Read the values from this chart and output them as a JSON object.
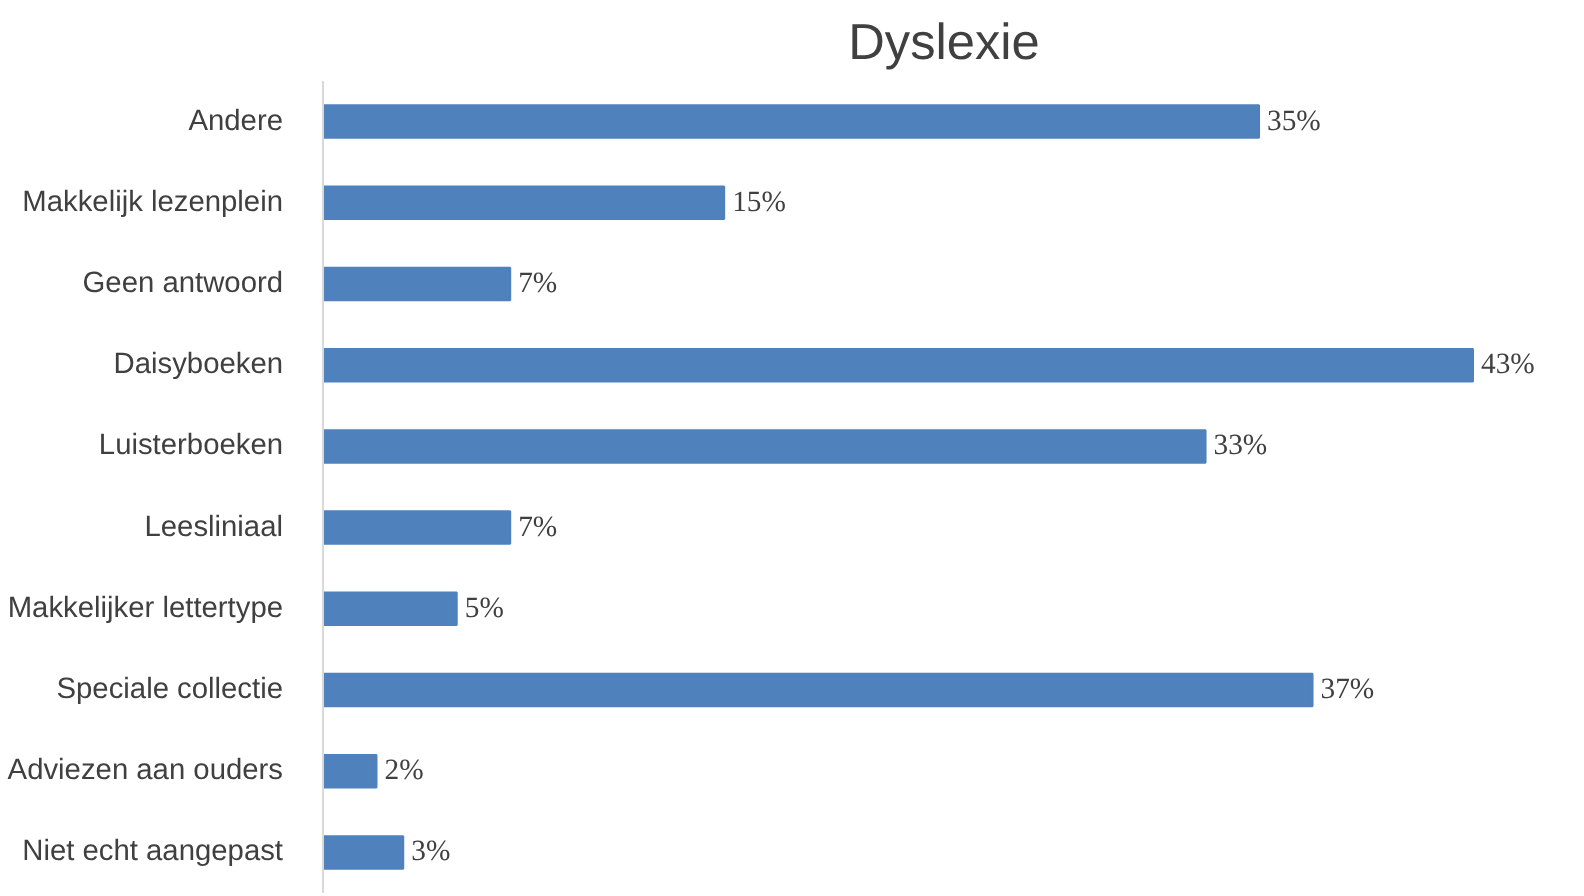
{
  "chart_data": {
    "type": "bar",
    "orientation": "horizontal",
    "title": "Dyslexie",
    "categories": [
      "Andere",
      "Makkelijk lezenplein",
      "Geen antwoord",
      "Daisyboeken",
      "Luisterboeken",
      "Leesliniaal",
      "Makkelijker lettertype",
      "Speciale collectie",
      "Adviezen aan ouders",
      "Niet echt aangepast"
    ],
    "values": [
      35,
      15,
      7,
      43,
      33,
      7,
      5,
      37,
      2,
      3
    ],
    "value_labels": [
      "35%",
      "15%",
      "7%",
      "43%",
      "33%",
      "7%",
      "5%",
      "37%",
      "2%",
      "3%"
    ],
    "color": "#4f81bd"
  }
}
